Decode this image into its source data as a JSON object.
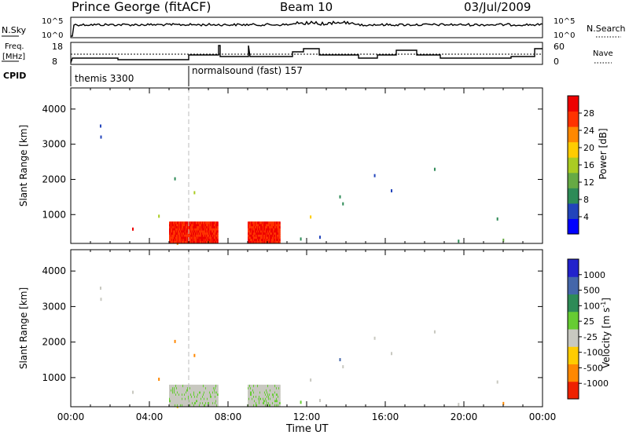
{
  "header": {
    "title": "Prince George (fitACF)",
    "beam": "Beam 10",
    "date": "03/Jul/2009"
  },
  "top_panels": {
    "nsky_label": "N.Sky",
    "nsky_ticks": [
      "10^5",
      "10^0"
    ],
    "nsearch_label": "N.Search",
    "freq_label_1": "Freq.",
    "freq_label_2": "[MHz]",
    "freq_ticks": [
      "18",
      "8"
    ],
    "nave_label": "Nave",
    "nave_ticks": [
      "60",
      "0"
    ],
    "cpid_label": "CPID",
    "cpid_1": "themis 3300",
    "cpid_2": "normalsound (fast) 157"
  },
  "colors": {
    "power": [
      "#0000ff",
      "#2244bb",
      "#2e8b57",
      "#66aa44",
      "#aacc22",
      "#ffcc00",
      "#ff8800",
      "#ff3300",
      "#ee0000"
    ],
    "velocity": [
      "#2222cc",
      "#4466aa",
      "#2e8b57",
      "#66cc33",
      "#c8c8c0",
      "#ffcc00",
      "#ff8800",
      "#ee2200"
    ]
  },
  "chart_data": [
    {
      "type": "heatmap",
      "panel": "power",
      "ylabel": "Slant Range [km]",
      "yticks": [
        1000,
        2000,
        3000,
        4000
      ],
      "ylim": [
        180,
        4600
      ],
      "xticks": [
        "00:00",
        "04:00",
        "08:00",
        "12:00",
        "16:00",
        "20:00",
        "00:00"
      ],
      "xlim": [
        0,
        24
      ],
      "colorbar_label": "Power [dB]",
      "colorbar_ticks": [
        "28",
        "24",
        "20",
        "16",
        "12",
        "8",
        "4"
      ],
      "colorbar_range": [
        0,
        30
      ],
      "data_gap_hours": [
        7.5,
        8.9
      ],
      "cpid_change_hour": 6.0
    },
    {
      "type": "heatmap",
      "panel": "velocity",
      "ylabel": "Slant Range [km]",
      "yticks": [
        1000,
        2000,
        3000,
        4000
      ],
      "ylim": [
        180,
        4600
      ],
      "xticks": [
        "00:00",
        "04:00",
        "08:00",
        "12:00",
        "16:00",
        "20:00",
        "00:00"
      ],
      "xlim": [
        0,
        24
      ],
      "xlabel": "Time UT",
      "colorbar_label": "Velocity [m s",
      "colorbar_label_sup": "-1",
      "colorbar_label_end": "]",
      "colorbar_ticks": [
        "1000",
        "500",
        "100",
        "25",
        "-25",
        "-100",
        "-500",
        "-1000"
      ],
      "data_gap_hours": [
        7.5,
        8.9
      ]
    }
  ]
}
